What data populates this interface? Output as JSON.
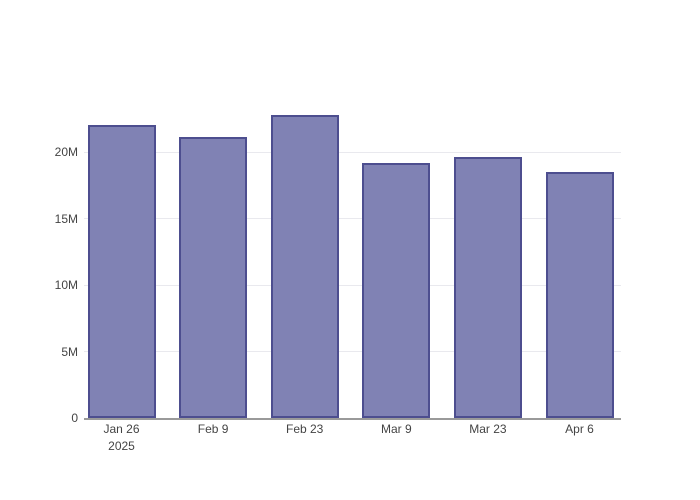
{
  "figure": {
    "background": "#ffffff",
    "title": ""
  },
  "chart_data": {
    "type": "bar",
    "categories": [
      "Jan 26 2025",
      "Feb 9",
      "Feb 23",
      "Mar 9",
      "Mar 23",
      "Apr 6"
    ],
    "values": [
      22000000,
      21100000,
      22800000,
      19200000,
      19600000,
      18500000
    ],
    "x_tick_labels": [
      {
        "label": "Jan 26",
        "sublabel": "2025"
      },
      {
        "label": "Feb 9",
        "sublabel": ""
      },
      {
        "label": "Feb 23",
        "sublabel": ""
      },
      {
        "label": "Mar 9",
        "sublabel": ""
      },
      {
        "label": "Mar 23",
        "sublabel": ""
      },
      {
        "label": "Apr 6",
        "sublabel": ""
      }
    ],
    "y_ticks": [
      {
        "value": 0,
        "label": "0"
      },
      {
        "value": 5000000,
        "label": "5M"
      },
      {
        "value": 10000000,
        "label": "10M"
      },
      {
        "value": 15000000,
        "label": "15M"
      },
      {
        "value": 20000000,
        "label": "20M"
      }
    ],
    "ylim": [
      0,
      23500000
    ],
    "title": "",
    "xlabel": "",
    "ylabel": "",
    "grid": true,
    "legend": false,
    "colors": {
      "bar_fill": "#8082b4",
      "bar_border": "#4d4e8f",
      "gridline": "#e9e9ee",
      "axis_line": "#9a9a9a",
      "tick_text": "#444444"
    }
  }
}
